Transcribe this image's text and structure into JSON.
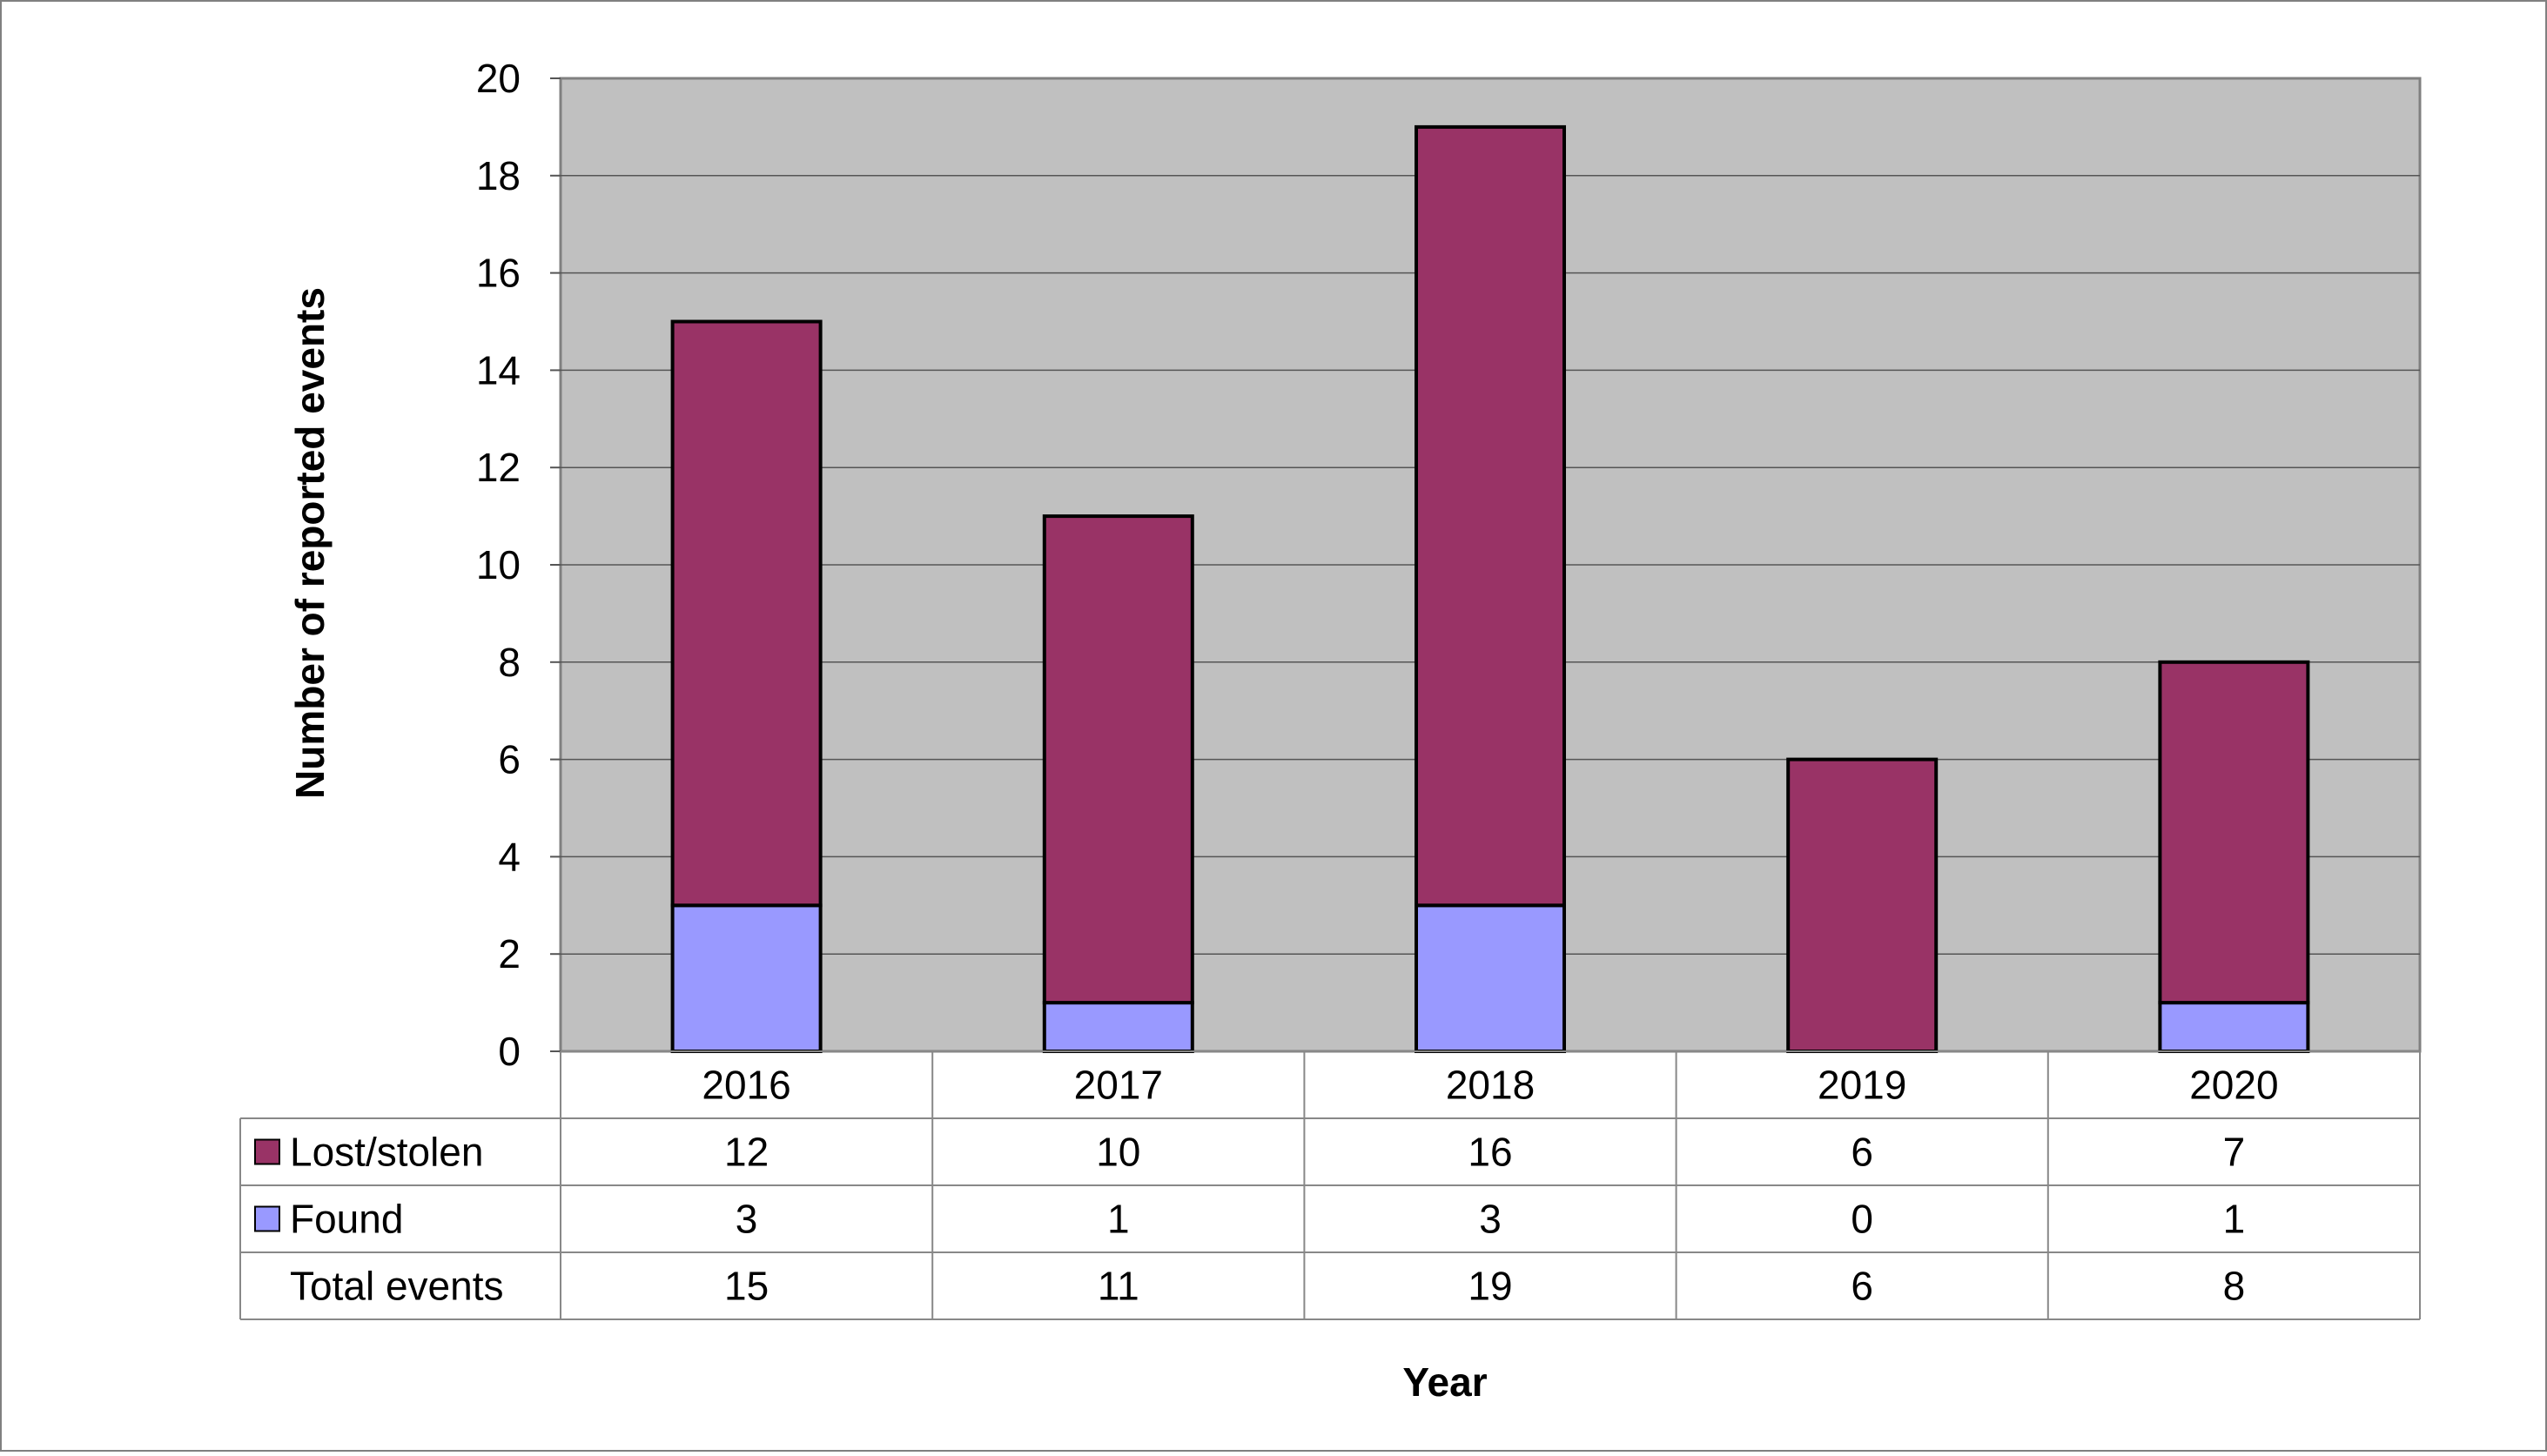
{
  "chart_data": {
    "type": "bar",
    "stacked": true,
    "categories": [
      "2016",
      "2017",
      "2018",
      "2019",
      "2020"
    ],
    "series": [
      {
        "name": "Found",
        "values": [
          3,
          1,
          3,
          0,
          1
        ],
        "color": "#9999FF"
      },
      {
        "name": "Lost/stolen",
        "values": [
          12,
          10,
          16,
          6,
          7
        ],
        "color": "#993366"
      }
    ],
    "table": {
      "rows": [
        {
          "label": "Lost/stolen",
          "series_index": 1,
          "values": [
            "12",
            "10",
            "16",
            "6",
            "7"
          ]
        },
        {
          "label": "Found",
          "series_index": 0,
          "values": [
            "3",
            "1",
            "3",
            "0",
            "1"
          ]
        },
        {
          "label": "Total events",
          "series_index": null,
          "values": [
            "15",
            "11",
            "19",
            "6",
            "8"
          ]
        }
      ]
    },
    "title": "",
    "xlabel": "Year",
    "ylabel": "Number of reported events",
    "ylim": [
      0,
      20
    ],
    "yticks": [
      0,
      2,
      4,
      6,
      8,
      10,
      12,
      14,
      16,
      18,
      20
    ],
    "grid": true,
    "plot_background": "#C0C0C0",
    "legend": "data-table"
  }
}
